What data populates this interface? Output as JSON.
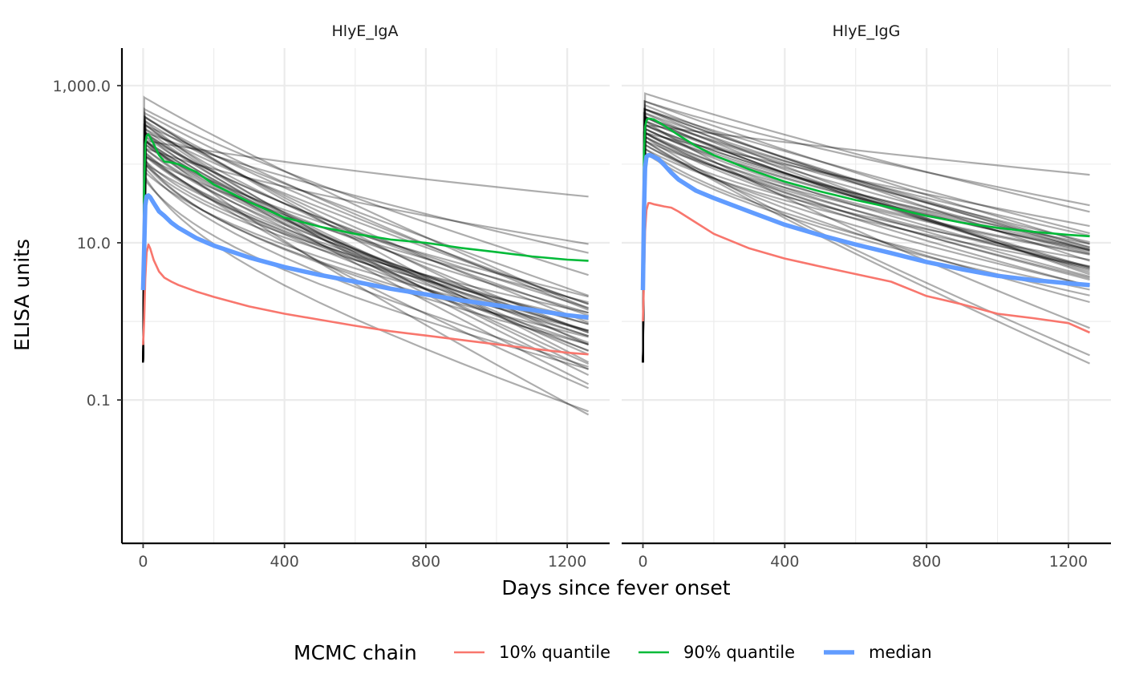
{
  "chart_data": {
    "type": "line",
    "ylabel": "ELISA units",
    "xlabel": "Days since fever onset",
    "y_scale": "log10",
    "ylim": [
      0.0015,
      3000
    ],
    "xlim": [
      -60,
      1320
    ],
    "x_ticks": [
      0,
      400,
      800,
      1200
    ],
    "x_tick_labels": [
      "0",
      "400",
      "800",
      "1200"
    ],
    "y_ticks": [
      0.1,
      10,
      1000
    ],
    "y_tick_labels": [
      "0.1",
      "10.0",
      "1,000.0"
    ],
    "grid": true,
    "legend": {
      "title": "MCMC chain",
      "position": "bottom",
      "entries": [
        {
          "label": "10% quantile",
          "color": "#F8766D"
        },
        {
          "label": "90% quantile",
          "color": "#00BA38"
        },
        {
          "label": "median",
          "color": "#619CFF"
        }
      ]
    },
    "iteration_line_color": "#000000",
    "panels": [
      {
        "title": "HlyE_IgA",
        "q10": {
          "x": [
            0,
            3,
            6,
            10,
            15,
            20,
            30,
            45,
            60,
            80,
            100,
            150,
            200,
            300,
            400,
            500,
            600,
            700,
            800,
            900,
            1000,
            1100,
            1200,
            1260
          ],
          "y": [
            0.5,
            1.1,
            3.5,
            7.5,
            9.5,
            8.5,
            6.0,
            4.3,
            3.6,
            3.2,
            2.9,
            2.4,
            2.05,
            1.55,
            1.25,
            1.05,
            0.88,
            0.75,
            0.66,
            0.58,
            0.51,
            0.45,
            0.4,
            0.38
          ]
        },
        "q90": {
          "x": [
            0,
            3,
            6,
            10,
            15,
            20,
            30,
            45,
            60,
            80,
            100,
            150,
            200,
            300,
            400,
            500,
            600,
            700,
            800,
            900,
            1000,
            1100,
            1200,
            1260
          ],
          "y": [
            2.6,
            55,
            180,
            230,
            240,
            220,
            180,
            130,
            108,
            105,
            100,
            80,
            55,
            33,
            21,
            16,
            13,
            11,
            10,
            8.6,
            7.6,
            6.7,
            6.1,
            5.9
          ]
        },
        "median": {
          "x": [
            0,
            3,
            6,
            10,
            15,
            20,
            30,
            45,
            60,
            80,
            100,
            150,
            200,
            300,
            400,
            500,
            600,
            700,
            800,
            900,
            1000,
            1100,
            1200,
            1260
          ],
          "y": [
            2.5,
            9,
            30,
            39,
            40,
            38,
            32,
            25,
            22,
            18,
            15.5,
            11.5,
            9.2,
            6.5,
            4.9,
            3.9,
            3.2,
            2.6,
            2.2,
            1.85,
            1.6,
            1.4,
            1.2,
            1.12
          ]
        },
        "iterations": [
          [
            5,
            2.6,
            420,
            0.0032
          ],
          [
            4,
            2.3,
            900,
            0.0004
          ],
          [
            6,
            2.4,
            600,
            0.0014
          ],
          [
            8,
            2.2,
            450,
            0.0008
          ],
          [
            3,
            2.5,
            700,
            0.0024
          ],
          [
            5,
            2.1,
            300,
            0.0015
          ],
          [
            7,
            2.0,
            260,
            0.0018
          ],
          [
            4,
            2.7,
            380,
            0.002
          ],
          [
            6,
            2.55,
            340,
            0.0026
          ],
          [
            5,
            2.3,
            200,
            0.0021
          ],
          [
            9,
            2.1,
            180,
            0.0016
          ],
          [
            3,
            2.85,
            520,
            0.003
          ],
          [
            5,
            1.9,
            150,
            0.0013
          ],
          [
            4,
            2.4,
            240,
            0.0019
          ],
          [
            6,
            2.6,
            320,
            0.0023
          ],
          [
            5,
            2.2,
            170,
            0.0017
          ],
          [
            7,
            2.3,
            280,
            0.0025
          ],
          [
            4,
            2.0,
            140,
            0.0012
          ],
          [
            8,
            2.5,
            220,
            0.0028
          ],
          [
            5,
            2.45,
            400,
            0.0022
          ],
          [
            6,
            2.1,
            190,
            0.002
          ],
          [
            4,
            2.35,
            360,
            0.0031
          ],
          [
            5,
            2.65,
            480,
            0.0027
          ],
          [
            6,
            2.25,
            210,
            0.0014
          ],
          [
            3,
            2.15,
            160,
            0.0018
          ],
          [
            5,
            2.05,
            130,
            0.0011
          ],
          [
            7,
            2.4,
            300,
            0.0029
          ],
          [
            4,
            2.55,
            260,
            0.0033
          ],
          [
            5,
            2.3,
            520,
            0.0036
          ],
          [
            6,
            2.0,
            110,
            0.0015
          ],
          [
            5,
            2.2,
            240,
            0.0024
          ],
          [
            8,
            2.35,
            350,
            0.0022
          ],
          [
            4,
            2.6,
            600,
            0.0037
          ],
          [
            6,
            1.95,
            120,
            0.0019
          ],
          [
            5,
            2.5,
            280,
            0.0026
          ],
          [
            3,
            2.3,
            180,
            0.002
          ],
          [
            5,
            1.8,
            100,
            0.0016
          ],
          [
            6,
            2.15,
            230,
            0.003
          ],
          [
            4,
            2.45,
            330,
            0.0034
          ],
          [
            7,
            2.25,
            200,
            0.0021
          ],
          [
            5,
            2.05,
            90,
            0.0013
          ],
          [
            6,
            2.4,
            150,
            0.0017
          ],
          [
            4,
            1.85,
            80,
            0.0023
          ],
          [
            5,
            2.3,
            270,
            0.0038
          ]
        ]
      },
      {
        "title": "HlyE_IgG",
        "q10": {
          "x": [
            0,
            3,
            6,
            10,
            15,
            20,
            30,
            45,
            60,
            80,
            100,
            150,
            200,
            300,
            400,
            500,
            600,
            700,
            800,
            900,
            1000,
            1100,
            1200,
            1260
          ],
          "y": [
            1.0,
            3.5,
            14,
            26,
            32,
            32,
            31,
            30,
            29,
            28,
            25,
            18,
            13,
            8.5,
            6.3,
            5,
            4,
            3.2,
            2.1,
            1.65,
            1.25,
            1.1,
            0.95,
            0.72
          ]
        },
        "q90": {
          "x": [
            0,
            3,
            6,
            10,
            15,
            20,
            30,
            45,
            60,
            80,
            100,
            150,
            200,
            300,
            400,
            500,
            600,
            700,
            800,
            900,
            1000,
            1100,
            1200,
            1260
          ],
          "y": [
            2.5,
            130,
            300,
            360,
            380,
            380,
            370,
            340,
            310,
            270,
            235,
            170,
            130,
            86,
            60,
            45,
            35,
            28,
            22,
            18,
            15.5,
            13.8,
            12.6,
            12.1
          ]
        },
        "median": {
          "x": [
            0,
            3,
            6,
            10,
            15,
            20,
            30,
            45,
            60,
            80,
            100,
            150,
            200,
            300,
            400,
            500,
            600,
            700,
            800,
            900,
            1000,
            1100,
            1200,
            1260
          ],
          "y": [
            2.5,
            25,
            90,
            125,
            130,
            130,
            125,
            115,
            98,
            78,
            64,
            46,
            37,
            25,
            17,
            12.5,
            9.5,
            7.4,
            5.7,
            4.6,
            3.8,
            3.35,
            3.05,
            2.9
          ]
        },
        "iterations": [
          [
            5,
            2.7,
            1000,
            0.0017
          ],
          [
            4,
            2.5,
            1600,
            0.0005
          ],
          [
            6,
            2.9,
            800,
            0.0015
          ],
          [
            3,
            2.4,
            1200,
            0.0012
          ],
          [
            5,
            2.8,
            600,
            0.0011
          ],
          [
            7,
            2.6,
            500,
            0.0014
          ],
          [
            4,
            2.3,
            350,
            0.001
          ],
          [
            6,
            2.7,
            700,
            0.0018
          ],
          [
            5,
            2.5,
            420,
            0.0013
          ],
          [
            8,
            2.4,
            380,
            0.0016
          ],
          [
            3,
            2.2,
            260,
            0.0009
          ],
          [
            5,
            2.6,
            480,
            0.0019
          ],
          [
            6,
            2.35,
            300,
            0.0012
          ],
          [
            4,
            2.55,
            550,
            0.0015
          ],
          [
            5,
            2.45,
            330,
            0.0011
          ],
          [
            7,
            2.65,
            640,
            0.0017
          ],
          [
            4,
            2.25,
            240,
            0.0008
          ],
          [
            6,
            2.5,
            450,
            0.0014
          ],
          [
            5,
            2.8,
            900,
            0.002
          ],
          [
            3,
            2.4,
            280,
            0.001
          ],
          [
            5,
            2.3,
            220,
            0.0016
          ],
          [
            6,
            2.6,
            520,
            0.0013
          ],
          [
            4,
            2.15,
            200,
            0.0012
          ],
          [
            5,
            2.7,
            760,
            0.0019
          ],
          [
            7,
            2.45,
            360,
            0.0015
          ],
          [
            4,
            2.35,
            400,
            0.003
          ],
          [
            6,
            2.55,
            340,
            0.0027
          ],
          [
            5,
            2.2,
            180,
            0.0011
          ],
          [
            3,
            2.65,
            580,
            0.0021
          ],
          [
            5,
            2.4,
            260,
            0.0014
          ],
          [
            6,
            2.75,
            820,
            0.0022
          ],
          [
            4,
            2.5,
            300,
            0.001
          ],
          [
            5,
            2.3,
            500,
            0.0032
          ],
          [
            6,
            2.6,
            430,
            0.0018
          ],
          [
            4,
            2.45,
            380,
            0.0012
          ],
          [
            5,
            2.35,
            320,
            0.0016
          ],
          [
            7,
            2.55,
            620,
            0.0019
          ],
          [
            5,
            2.25,
            250,
            0.0013
          ],
          [
            4,
            2.7,
            700,
            0.0023
          ],
          [
            6,
            2.4,
            290,
            0.0015
          ]
        ]
      }
    ]
  }
}
